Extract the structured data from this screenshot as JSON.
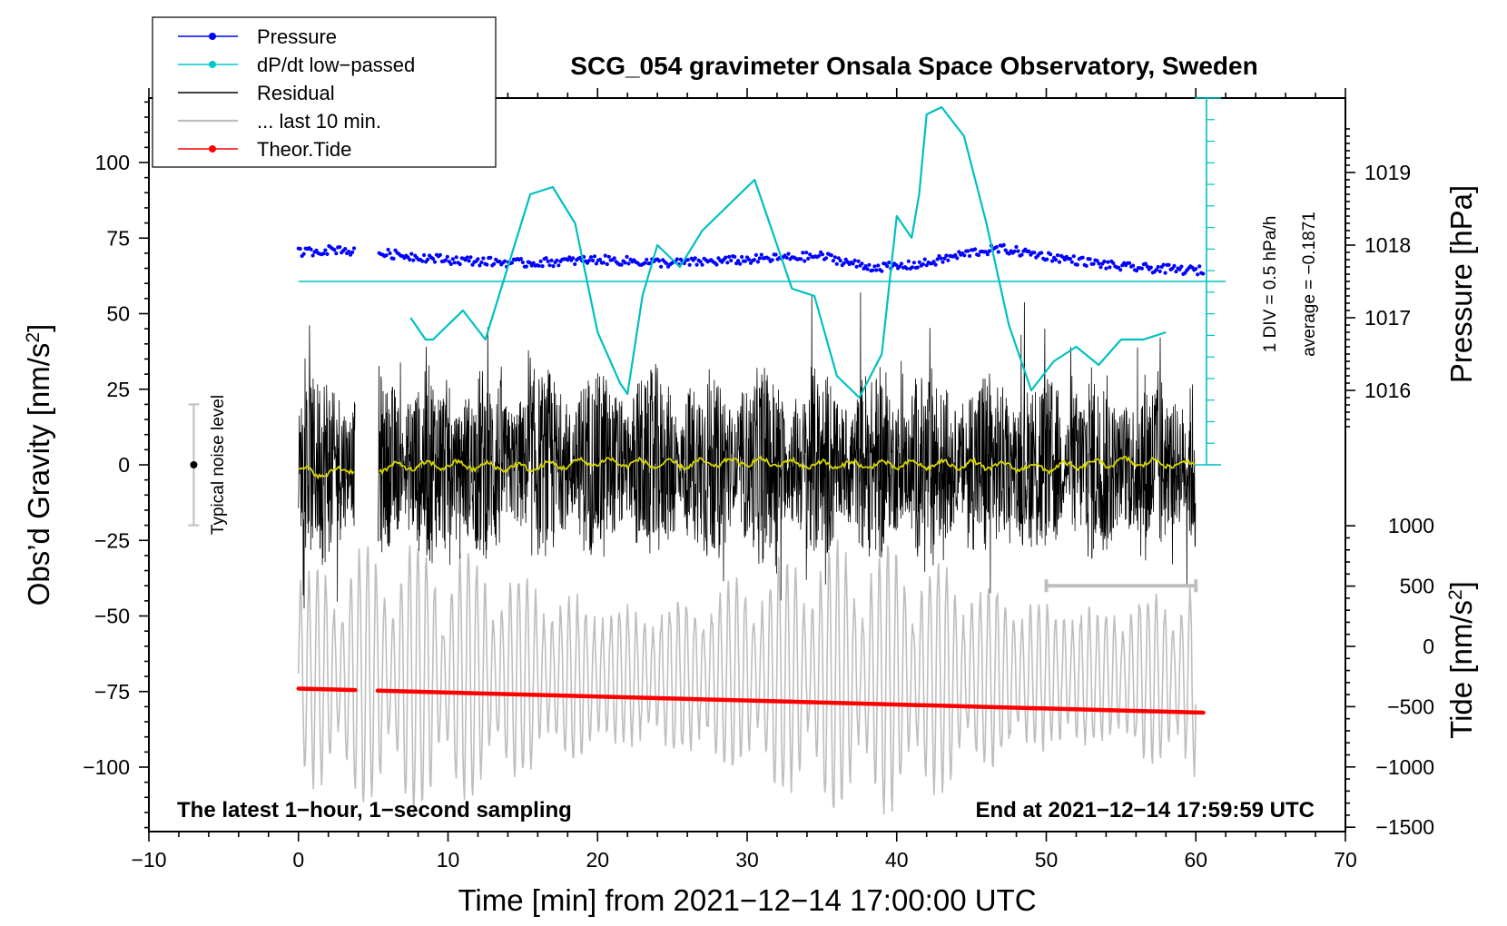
{
  "chart_data": {
    "type": "line",
    "title": "SCG_054 gravimeter Onsala Space Observatory, Sweden",
    "xlabel": "Time [min] from 2021−12−14 17:00:00 UTC",
    "ylabel_left_main": "Obs’d Gravity [nm/s",
    "ylabel_left_sup": "2",
    "ylabel_left_end": "]",
    "ylabel_right_pressure": "Pressure [hPa]",
    "ylabel_right_tide_main": "Tide [nm/s",
    "ylabel_right_tide_sup": "2",
    "ylabel_right_tide_end": "]",
    "xlim": [
      -10,
      70
    ],
    "ylim_gravity": [
      -120,
      120
    ],
    "x_ticks": [
      "−10",
      "0",
      "10",
      "20",
      "30",
      "40",
      "50",
      "60",
      "70"
    ],
    "gravity_ticks": [
      "100",
      "75",
      "50",
      "25",
      "0",
      "−25",
      "−50",
      "−75",
      "−100"
    ],
    "pressure_ticks": [
      "1019",
      "1018",
      "1017",
      "1016"
    ],
    "tide_ticks": [
      "1000",
      "500",
      "0",
      "−500",
      "−1000",
      "−1500"
    ],
    "legend": [
      {
        "label": "Pressure",
        "color": "#0000ff",
        "marker": true
      },
      {
        "label": "dP/dt low−passed",
        "color": "#00c8c8",
        "marker": true
      },
      {
        "label": "Residual",
        "color": "#000000",
        "marker": false
      },
      {
        "label": "... last 10 min.",
        "color": "#bebebe",
        "marker": false
      },
      {
        "label": "Theor.Tide",
        "color": "#ff0000",
        "marker": true
      }
    ],
    "annotations": {
      "bottom_left": "The latest 1−hour, 1−second sampling",
      "bottom_right": "End at 2021−12−14 17:59:59 UTC",
      "noise_label": "Typical noise level",
      "dpdt_div": "1 DIV = 0.5 hPa/h",
      "dpdt_avg": "average = −0.1871"
    },
    "noise_bar": {
      "x": -7,
      "center": 0,
      "half_range": 20
    },
    "last10_bar": {
      "x_start": 50,
      "x_end": 60,
      "y": -40
    },
    "pressure": {
      "x": [
        0,
        3,
        3.5,
        5,
        10,
        15,
        20,
        25,
        30,
        35,
        38,
        40,
        42,
        45,
        47,
        50,
        55,
        60
      ],
      "y": [
        1017.9,
        1017.95,
        1017.9,
        1017.9,
        1017.8,
        1017.75,
        1017.8,
        1017.75,
        1017.8,
        1017.85,
        1017.7,
        1017.7,
        1017.75,
        1017.9,
        1017.95,
        1017.85,
        1017.7,
        1017.65
      ]
    },
    "dpdt": {
      "x": [
        7.5,
        8.5,
        9,
        11,
        12.5,
        14,
        15.5,
        17,
        18.5,
        20,
        21.5,
        22,
        23,
        24,
        24.5,
        25.5,
        27,
        29,
        30.5,
        31.5,
        33,
        34.5,
        36,
        37.5,
        39,
        40,
        41,
        41.5,
        42,
        43,
        44.5,
        46,
        47.5,
        49,
        50.5,
        52,
        53.5,
        55,
        56.5,
        58
      ],
      "y": [
        1017.0,
        1016.7,
        1016.7,
        1017.1,
        1016.7,
        1017.7,
        1018.7,
        1018.8,
        1018.3,
        1016.8,
        1016.1,
        1015.95,
        1017.3,
        1018.0,
        1017.9,
        1017.7,
        1018.2,
        1018.6,
        1018.9,
        1018.3,
        1017.4,
        1017.3,
        1016.2,
        1015.9,
        1016.5,
        1018.4,
        1018.1,
        1018.7,
        1019.8,
        1019.9,
        1019.5,
        1018.3,
        1016.9,
        1016.0,
        1016.4,
        1016.6,
        1016.35,
        1016.7,
        1016.7,
        1016.8
      ]
    },
    "theor_tide": {
      "x": [
        0,
        60.5
      ],
      "y": [
        -350,
        -550
      ]
    },
    "residual_smoothed": {
      "x": [
        0,
        2,
        3.5,
        5,
        10,
        15,
        20,
        25,
        30,
        35,
        40,
        45,
        50,
        55,
        60
      ],
      "y": [
        -2,
        -3,
        -1,
        -1,
        0,
        -1,
        1,
        0,
        1,
        0,
        0,
        0,
        -1,
        1,
        0
      ]
    },
    "residual_envelope_amplitude": 30,
    "last10_envelope_amplitude": 45
  }
}
